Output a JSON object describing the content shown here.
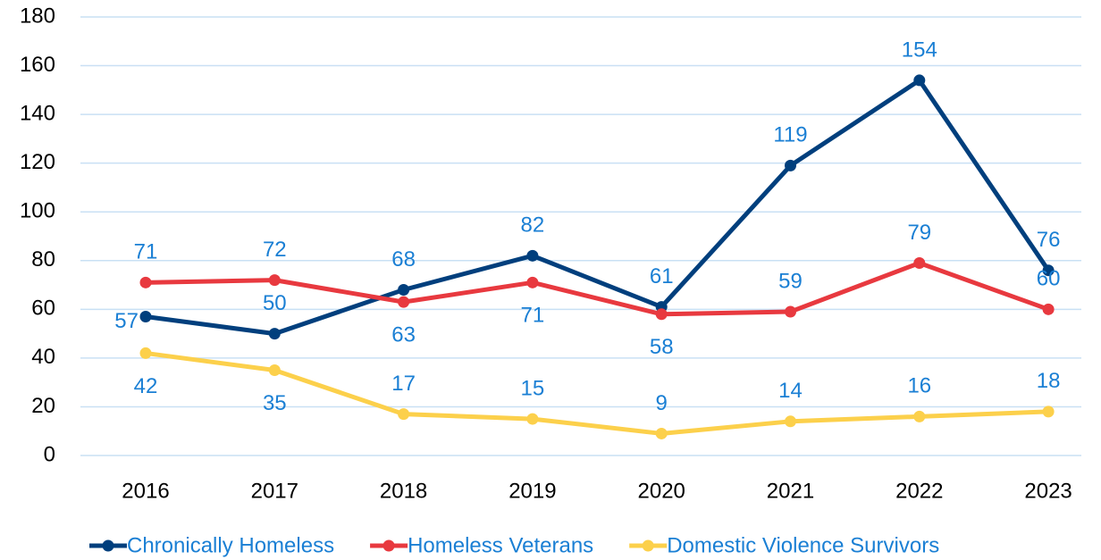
{
  "chart_data": {
    "type": "line",
    "categories": [
      "2016",
      "2017",
      "2018",
      "2019",
      "2020",
      "2021",
      "2022",
      "2023"
    ],
    "series": [
      {
        "name": "Chronically Homeless",
        "color": "#003f7d",
        "values": [
          57,
          50,
          68,
          82,
          61,
          119,
          154,
          76
        ]
      },
      {
        "name": "Homeless Veterans",
        "color": "#e8393f",
        "values": [
          71,
          72,
          63,
          71,
          58,
          59,
          79,
          60
        ]
      },
      {
        "name": "Domestic Violence Survivors",
        "color": "#fcd04b",
        "values": [
          42,
          35,
          17,
          15,
          9,
          14,
          16,
          18
        ]
      }
    ],
    "ylim": [
      0,
      180
    ],
    "yticks": [
      0,
      20,
      40,
      60,
      80,
      100,
      120,
      140,
      160,
      180
    ],
    "grid": true,
    "legend": "bottom",
    "label_color": "#1a7fd4"
  }
}
